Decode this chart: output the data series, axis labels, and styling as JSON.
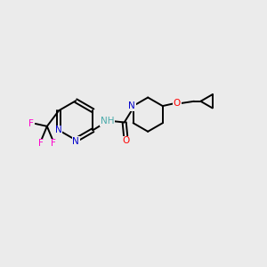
{
  "background_color": "#EBEBEB",
  "bond_color": "#000000",
  "atom_colors": {
    "N": "#0000CC",
    "O": "#FF0000",
    "F": "#FF00CC",
    "C": "#000000",
    "H": "#4AABAB"
  },
  "figsize": [
    3.0,
    3.0
  ],
  "dpi": 100
}
